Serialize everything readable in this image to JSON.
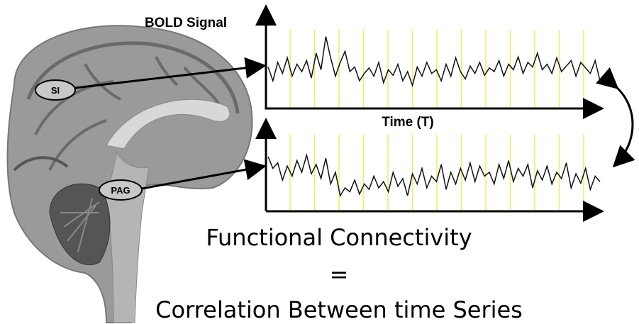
{
  "labels": {
    "bold_signal": "BOLD Signal",
    "time": "Time (T)",
    "region_1": "SI",
    "region_2": "PAG"
  },
  "caption": {
    "line_1": "Functional Connectivity",
    "line_2": "=",
    "line_3": "Correlation Between time Series"
  },
  "signals": [
    {
      "region": "SI",
      "values": [
        45,
        30,
        50,
        38,
        55,
        35,
        48,
        40,
        52,
        33,
        60,
        42,
        78,
        55,
        35,
        50,
        62,
        40,
        45,
        30,
        38,
        44,
        35,
        50,
        28,
        42,
        36,
        48,
        30,
        40,
        25,
        45,
        35,
        50,
        38,
        42,
        30,
        48,
        35,
        55,
        40,
        32,
        46,
        38,
        50,
        36,
        44,
        40,
        52,
        35,
        48,
        42,
        56,
        38,
        50,
        45,
        60,
        42,
        48,
        38,
        55,
        40,
        46,
        52,
        35,
        50,
        44,
        38,
        52,
        30
      ]
    },
    {
      "region": "PAG",
      "values": [
        70,
        55,
        62,
        40,
        58,
        45,
        65,
        50,
        72,
        48,
        60,
        42,
        68,
        35,
        50,
        20,
        30,
        25,
        40,
        22,
        35,
        28,
        45,
        30,
        38,
        25,
        50,
        32,
        42,
        20,
        48,
        35,
        55,
        30,
        45,
        38,
        60,
        28,
        50,
        35,
        55,
        40,
        62,
        38,
        58,
        45,
        50,
        35,
        60,
        42,
        65,
        38,
        55,
        45,
        60,
        30,
        52,
        40,
        58,
        35,
        50,
        42,
        62,
        30,
        48,
        36,
        55,
        28,
        45,
        38
      ]
    }
  ]
}
